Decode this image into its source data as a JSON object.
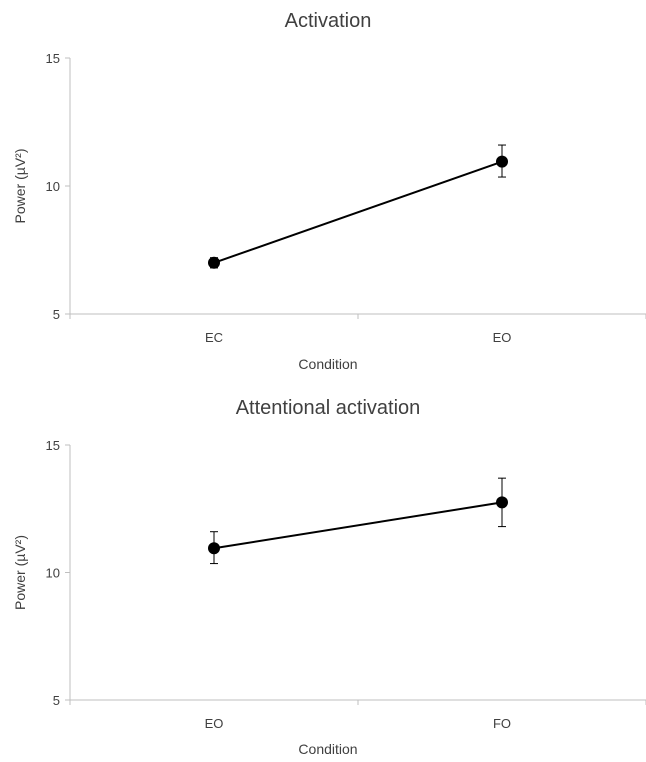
{
  "chart_data": [
    {
      "type": "line",
      "title": "Activation",
      "xlabel": "Condition",
      "ylabel": "Power (µV²)",
      "categories": [
        "EC",
        "EO"
      ],
      "ylim": [
        5,
        15
      ],
      "yticks": [
        5,
        10,
        15
      ],
      "grid": false,
      "series": [
        {
          "values": [
            7.0,
            10.95
          ],
          "error_low": [
            6.8,
            10.35
          ],
          "error_high": [
            7.2,
            11.6
          ]
        }
      ]
    },
    {
      "type": "line",
      "title": "Attentional activation",
      "xlabel": "Condition",
      "ylabel": "Power (µV²)",
      "categories": [
        "EO",
        "FO"
      ],
      "ylim": [
        5,
        15
      ],
      "yticks": [
        5,
        10,
        15
      ],
      "grid": false,
      "series": [
        {
          "values": [
            10.95,
            12.75
          ],
          "error_low": [
            10.35,
            11.8
          ],
          "error_high": [
            11.6,
            13.7
          ]
        }
      ]
    }
  ]
}
